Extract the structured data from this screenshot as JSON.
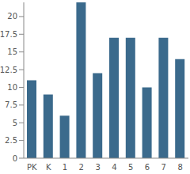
{
  "chart_data": {
    "type": "bar",
    "categories": [
      "PK",
      "K",
      "1",
      "2",
      "3",
      "4",
      "5",
      "6",
      "7",
      "8"
    ],
    "values": [
      11,
      9,
      6,
      22,
      12,
      17,
      17,
      10,
      17,
      14
    ],
    "color": "#3b6a8c",
    "ylim": [
      0,
      22
    ],
    "yticks": [
      0,
      2.5,
      5,
      7.5,
      10,
      12.5,
      15,
      17.5,
      20
    ],
    "grid": false
  }
}
